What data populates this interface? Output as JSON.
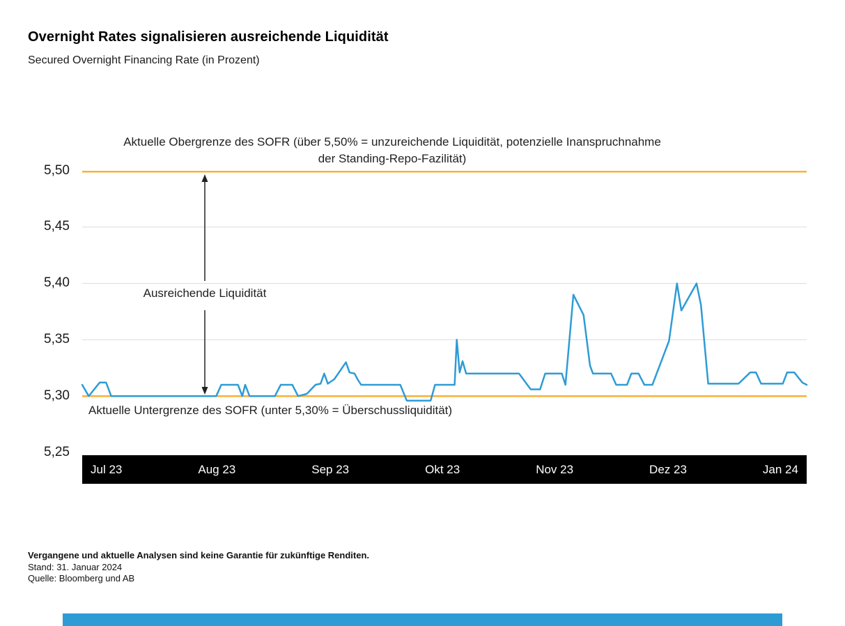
{
  "header": {
    "title": "Overnight Rates signalisieren ausreichende Liquidität",
    "subtitle": "Secured Overnight Financing Rate (in Prozent)"
  },
  "chart_data": {
    "type": "line",
    "title": "Secured Overnight Financing Rate (in Prozent)",
    "x_axis": {
      "labels": [
        "Jul 23",
        "Aug 23",
        "Sep 23",
        "Okt 23",
        "Nov 23",
        "Dez 23",
        "Jan 24"
      ]
    },
    "y_axis": {
      "ticks": [
        "5,50",
        "5,45",
        "5,40",
        "5,35",
        "5,30",
        "5,25"
      ],
      "min": 5.25,
      "max": 5.5,
      "step": 0.05
    },
    "upper_bound": 5.5,
    "lower_bound": 5.3,
    "grid_values": [
      5.45,
      5.4,
      5.35
    ],
    "annotations": {
      "upper_line1": "Aktuelle Obergrenze des SOFR (über 5,50% = unzureichende Liquidität, potenzielle Inanspruchnahme",
      "upper_line2": "der Standing-Repo-Fazilität)",
      "range": "Ausreichende Liquidität",
      "lower": "Aktuelle Untergrenze des SOFR (unter 5,30% = Überschussliquidität)"
    },
    "series": [
      {
        "name": "SOFR",
        "points": [
          [
            0.0,
            5.31
          ],
          [
            0.009,
            5.3
          ],
          [
            0.024,
            5.312
          ],
          [
            0.033,
            5.312
          ],
          [
            0.04,
            5.3
          ],
          [
            0.185,
            5.3
          ],
          [
            0.192,
            5.31
          ],
          [
            0.215,
            5.31
          ],
          [
            0.221,
            5.3
          ],
          [
            0.225,
            5.31
          ],
          [
            0.231,
            5.3
          ],
          [
            0.266,
            5.3
          ],
          [
            0.274,
            5.31
          ],
          [
            0.29,
            5.31
          ],
          [
            0.298,
            5.3
          ],
          [
            0.31,
            5.302
          ],
          [
            0.322,
            5.31
          ],
          [
            0.329,
            5.311
          ],
          [
            0.334,
            5.32
          ],
          [
            0.339,
            5.311
          ],
          [
            0.348,
            5.315
          ],
          [
            0.364,
            5.33
          ],
          [
            0.369,
            5.321
          ],
          [
            0.376,
            5.32
          ],
          [
            0.38,
            5.315
          ],
          [
            0.385,
            5.31
          ],
          [
            0.439,
            5.31
          ],
          [
            0.448,
            5.296
          ],
          [
            0.481,
            5.296
          ],
          [
            0.487,
            5.31
          ],
          [
            0.514,
            5.31
          ],
          [
            0.517,
            5.35
          ],
          [
            0.521,
            5.321
          ],
          [
            0.525,
            5.331
          ],
          [
            0.53,
            5.32
          ],
          [
            0.603,
            5.32
          ],
          [
            0.619,
            5.306
          ],
          [
            0.632,
            5.306
          ],
          [
            0.639,
            5.32
          ],
          [
            0.662,
            5.32
          ],
          [
            0.667,
            5.31
          ],
          [
            0.678,
            5.39
          ],
          [
            0.692,
            5.372
          ],
          [
            0.701,
            5.327
          ],
          [
            0.705,
            5.32
          ],
          [
            0.73,
            5.32
          ],
          [
            0.737,
            5.31
          ],
          [
            0.752,
            5.31
          ],
          [
            0.758,
            5.32
          ],
          [
            0.768,
            5.32
          ],
          [
            0.776,
            5.31
          ],
          [
            0.787,
            5.31
          ],
          [
            0.81,
            5.349
          ],
          [
            0.821,
            5.4
          ],
          [
            0.827,
            5.376
          ],
          [
            0.848,
            5.4
          ],
          [
            0.854,
            5.381
          ],
          [
            0.864,
            5.311
          ],
          [
            0.906,
            5.311
          ],
          [
            0.922,
            5.321
          ],
          [
            0.93,
            5.321
          ],
          [
            0.937,
            5.311
          ],
          [
            0.967,
            5.311
          ],
          [
            0.973,
            5.321
          ],
          [
            0.983,
            5.321
          ],
          [
            0.994,
            5.312
          ],
          [
            1.0,
            5.31
          ]
        ]
      }
    ],
    "colors": {
      "line": "#2E9BD5",
      "bounds": "#FBB034",
      "grid": "#DCDCDC",
      "band_bg": "#000000",
      "band_text": "#FFFFFF",
      "accent_bar": "#2E9BD5"
    }
  },
  "footer": {
    "disclaimer": "Vergangene und aktuelle Analysen sind keine Garantie für zukünftige Renditen.",
    "as_of": "Stand: 31. Januar 2024",
    "source": "Quelle: Bloomberg und AB"
  }
}
